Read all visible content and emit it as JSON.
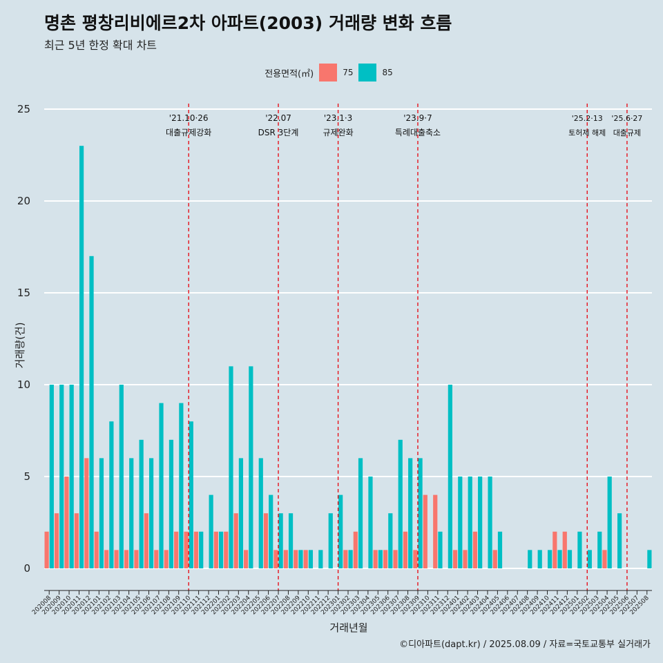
{
  "title": "명촌 평창리비에르2차 아파트(2003) 거래량 변화 흐름",
  "subtitle": "최근 5년 한정 확대 차트",
  "legend": {
    "title": "전용면적(㎡)",
    "items": [
      {
        "label": "75",
        "color": "#f8766d"
      },
      {
        "label": "85",
        "color": "#00bfc4"
      }
    ]
  },
  "caption": "©디아파트(dapt.kr) / 2025.08.09 / 자료=국토교통부 실거래가",
  "chart_data": {
    "type": "bar",
    "xlabel": "거래년월",
    "ylabel": "거래량(건)",
    "ylim": [
      0,
      25
    ],
    "yticks": [
      0,
      5,
      10,
      15,
      20,
      25
    ],
    "grid": true,
    "legend_position": "top",
    "categories": [
      "202008",
      "202009",
      "202010",
      "202011",
      "202012",
      "202101",
      "202102",
      "202103",
      "202104",
      "202105",
      "202106",
      "202107",
      "202108",
      "202109",
      "202110",
      "202111",
      "202112",
      "202201",
      "202202",
      "202203",
      "202204",
      "202205",
      "202206",
      "202207",
      "202208",
      "202209",
      "202210",
      "202211",
      "202212",
      "202301",
      "202302",
      "202303",
      "202304",
      "202305",
      "202306",
      "202307",
      "202308",
      "202309",
      "202310",
      "202311",
      "202312",
      "202401",
      "202402",
      "202403",
      "202404",
      "202405",
      "202406",
      "202407",
      "202408",
      "202409",
      "202410",
      "202411",
      "202412",
      "202501",
      "202502",
      "202503",
      "202504",
      "202505",
      "202506",
      "202507",
      "202508"
    ],
    "series": [
      {
        "name": "75",
        "color": "#f8766d",
        "values": [
          2,
          3,
          5,
          3,
          6,
          2,
          1,
          1,
          1,
          1,
          3,
          1,
          1,
          2,
          2,
          2,
          0,
          2,
          2,
          3,
          1,
          0,
          3,
          1,
          1,
          1,
          1,
          0,
          0,
          0,
          1,
          2,
          0,
          1,
          1,
          1,
          2,
          1,
          4,
          4,
          0,
          1,
          1,
          2,
          0,
          1,
          0,
          0,
          0,
          0,
          0,
          2,
          2,
          0,
          0,
          0,
          1,
          0,
          0,
          0,
          0
        ]
      },
      {
        "name": "85",
        "color": "#00bfc4",
        "values": [
          10,
          10,
          10,
          23,
          17,
          6,
          8,
          10,
          6,
          7,
          6,
          9,
          7,
          9,
          8,
          2,
          4,
          2,
          11,
          6,
          11,
          6,
          4,
          3,
          3,
          1,
          1,
          1,
          3,
          4,
          1,
          6,
          5,
          1,
          3,
          7,
          6,
          6,
          0,
          2,
          10,
          5,
          5,
          5,
          5,
          2,
          0,
          0,
          1,
          1,
          1,
          1,
          1,
          2,
          1,
          2,
          5,
          3,
          0,
          0,
          1
        ]
      }
    ],
    "events": [
      {
        "category": "202110",
        "date": "'21.10·26",
        "label": "대출규제강화"
      },
      {
        "category": "202207",
        "date": "'22.07",
        "label": "DSR 3단계"
      },
      {
        "category": "202301",
        "date": "'23.1·3",
        "label": "규제완화"
      },
      {
        "category": "202309",
        "date": "'23.9·7",
        "label": "특례대출축소"
      },
      {
        "category": "202502",
        "date": "'25.2·13",
        "label": "토허제 해제"
      },
      {
        "category": "202506",
        "date": "'25.6·27",
        "label": "대출규제"
      }
    ]
  }
}
